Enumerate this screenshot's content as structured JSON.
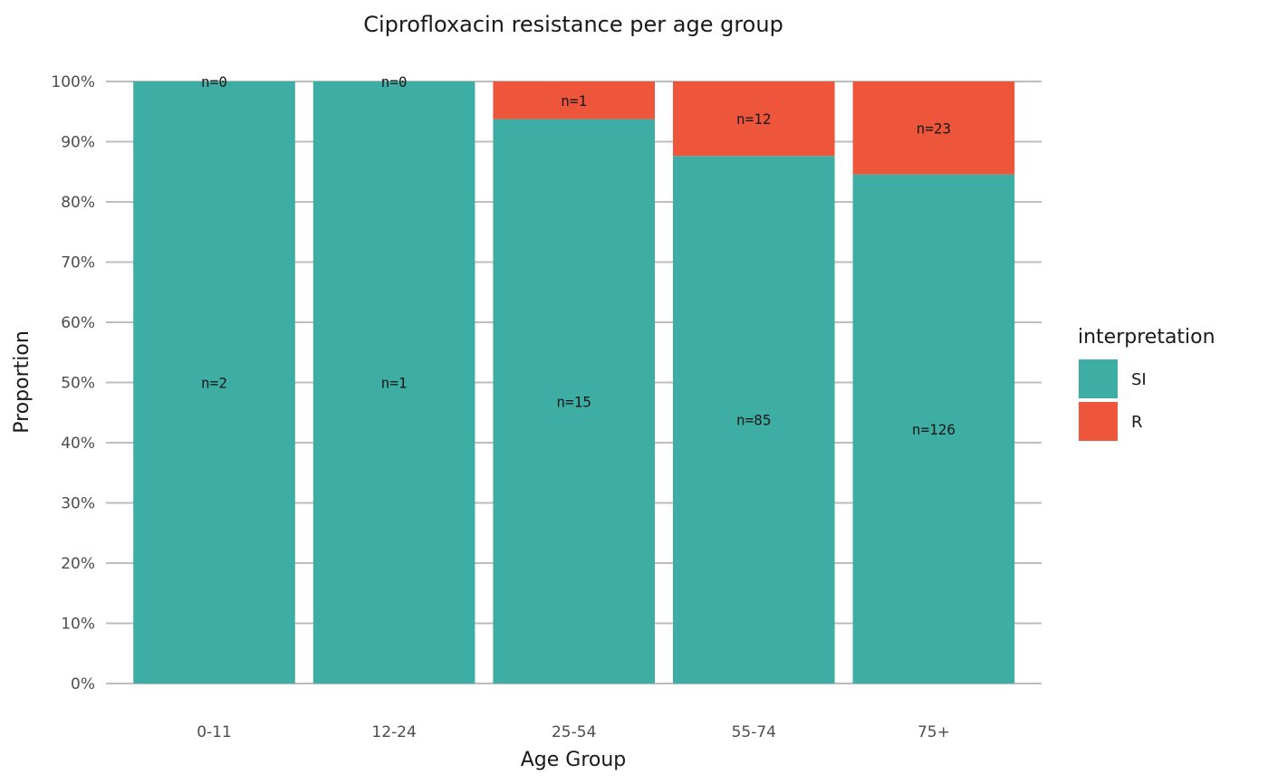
{
  "chart_data": {
    "type": "bar",
    "stacked": true,
    "normalized": true,
    "title": "Ciprofloxacin resistance per age group",
    "xlabel": "Age Group",
    "ylabel": "Proportion",
    "ylim": [
      0,
      1
    ],
    "yticks": [
      "0%",
      "10%",
      "20%",
      "30%",
      "40%",
      "50%",
      "60%",
      "70%",
      "80%",
      "90%",
      "100%"
    ],
    "categories": [
      "0-11",
      "12-24",
      "25-54",
      "55-74",
      "75+"
    ],
    "grid": true,
    "legend": {
      "title": "interpretation",
      "position": "right"
    },
    "series": [
      {
        "name": "SI",
        "color": "#3eada3",
        "values": [
          2,
          1,
          15,
          85,
          126
        ],
        "labels": [
          "n=2",
          "n=1",
          "n=15",
          "n=85",
          "n=126"
        ]
      },
      {
        "name": "R",
        "color": "#ee563b",
        "values": [
          0,
          0,
          1,
          12,
          23
        ],
        "labels": [
          "n=0",
          "n=0",
          "n=1",
          "n=12",
          "n=23"
        ]
      }
    ]
  }
}
